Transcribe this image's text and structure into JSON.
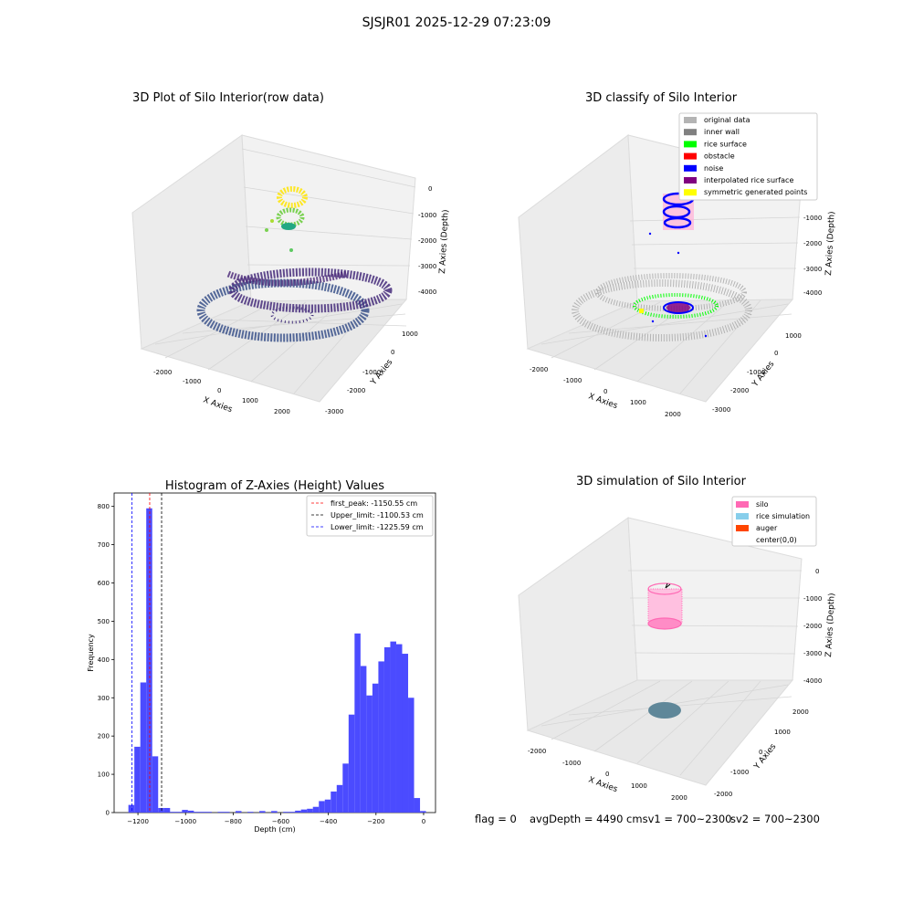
{
  "suptitle": "SJSJR01 2025-12-29 07:23:09",
  "colors": {
    "original": "#b4b4b4",
    "inner_wall": "#808080",
    "rice_surface": "#00ff00",
    "obstacle": "#ff0000",
    "noise": "#0000ff",
    "interpolated": "#800080",
    "symmetric": "#ffff00",
    "silo": "#ff69b4",
    "rice_sim": "#87ceeb",
    "auger": "#ff4500",
    "bar": "#4b4bff"
  },
  "plot1": {
    "title": "3D Plot of Silo Interior(row data)",
    "xlabel": "X Axies",
    "ylabel": "Y Axies",
    "zlabel": "Z Axies (Depth)",
    "xticks": [
      "-2000",
      "-1000",
      "0",
      "1000",
      "2000"
    ],
    "yticks": [
      "1000",
      "0",
      "-1000",
      "-2000",
      "-3000"
    ],
    "zticks": [
      "0",
      "-1000",
      "-2000",
      "-3000",
      "-4000"
    ]
  },
  "plot2": {
    "title": "3D classify of Silo Interior",
    "xlabel": "X Axies",
    "ylabel": "Y Axies",
    "zlabel": "Z Axies (Depth)",
    "xticks": [
      "-2000",
      "-1000",
      "0",
      "1000",
      "2000"
    ],
    "yticks": [
      "1000",
      "0",
      "-1000",
      "-2000",
      "-3000"
    ],
    "zticks": [
      "-1000",
      "-2000",
      "-3000",
      "-4000"
    ],
    "legend": [
      {
        "label": "original data",
        "color": "#b4b4b4"
      },
      {
        "label": "inner wall",
        "color": "#808080"
      },
      {
        "label": "rice surface",
        "color": "#00ff00"
      },
      {
        "label": "obstacle",
        "color": "#ff0000"
      },
      {
        "label": "noise",
        "color": "#0000ff"
      },
      {
        "label": "interpolated rice surface",
        "color": "#800080"
      },
      {
        "label": "symmetric generated points",
        "color": "#ffff00"
      }
    ]
  },
  "plot4": {
    "title": "3D simulation of Silo Interior",
    "xlabel": "X Axies",
    "ylabel": "Y Axies",
    "zlabel": "Z Axies (Depth)",
    "xticks": [
      "-2000",
      "-1000",
      "0",
      "1000",
      "2000"
    ],
    "yticks": [
      "2000",
      "1000",
      "0",
      "-1000",
      "-2000"
    ],
    "zticks": [
      "0",
      "-1000",
      "-2000",
      "-3000",
      "-4000"
    ],
    "legend": [
      {
        "label": "silo",
        "color": "#ff69b4"
      },
      {
        "label": "rice simulation",
        "color": "#87ceeb"
      },
      {
        "label": "auger",
        "color": "#ff4500"
      },
      {
        "label": "center(0,0)",
        "color": "none"
      }
    ]
  },
  "chart_data": [
    {
      "type": "bar",
      "title": "Histogram of Z-Axies (Height) Values",
      "xlabel": "Depth (cm)",
      "ylabel": "Frequency",
      "xlim": [
        -1300,
        50
      ],
      "ylim": [
        0,
        835
      ],
      "xticks": [
        -1200,
        -1000,
        -800,
        -600,
        -400,
        -200,
        0
      ],
      "yticks": [
        0,
        100,
        200,
        300,
        400,
        500,
        600,
        700,
        800
      ],
      "bin_width": 25,
      "bins": [
        [
          -1240,
          20
        ],
        [
          -1215,
          172
        ],
        [
          -1190,
          340
        ],
        [
          -1165,
          795
        ],
        [
          -1140,
          147
        ],
        [
          -1115,
          12
        ],
        [
          -1090,
          12
        ],
        [
          -1065,
          2
        ],
        [
          -1040,
          2
        ],
        [
          -1015,
          7
        ],
        [
          -990,
          5
        ],
        [
          -965,
          2
        ],
        [
          -940,
          2
        ],
        [
          -915,
          2
        ],
        [
          -865,
          2
        ],
        [
          -840,
          2
        ],
        [
          -790,
          4
        ],
        [
          -740,
          2
        ],
        [
          -690,
          4
        ],
        [
          -640,
          4
        ],
        [
          -590,
          2
        ],
        [
          -565,
          2
        ],
        [
          -540,
          5
        ],
        [
          -515,
          8
        ],
        [
          -490,
          10
        ],
        [
          -465,
          15
        ],
        [
          -440,
          30
        ],
        [
          -415,
          34
        ],
        [
          -390,
          55
        ],
        [
          -365,
          72
        ],
        [
          -340,
          128
        ],
        [
          -315,
          256
        ],
        [
          -290,
          468
        ],
        [
          -265,
          383
        ],
        [
          -240,
          306
        ],
        [
          -215,
          337
        ],
        [
          -190,
          395
        ],
        [
          -165,
          432
        ],
        [
          -140,
          447
        ],
        [
          -115,
          440
        ],
        [
          -90,
          415
        ],
        [
          -65,
          300
        ],
        [
          -40,
          38
        ],
        [
          -15,
          4
        ]
      ],
      "vlines": [
        {
          "x": -1150.55,
          "color": "#ff0000",
          "label": "first_peak: -1150.55 cm"
        },
        {
          "x": -1100.53,
          "color": "#000000",
          "label": "Upper_limit: -1100.53 cm"
        },
        {
          "x": -1225.59,
          "color": "#0000ff",
          "label": "Lower_limit: -1225.59 cm"
        }
      ],
      "legend_position": "upper right"
    }
  ],
  "footer": {
    "flag": "flag = 0",
    "avg": "avgDepth = 4490 cmsv1 = 700~2300",
    "sv2": "sv2 = 700~2300"
  }
}
